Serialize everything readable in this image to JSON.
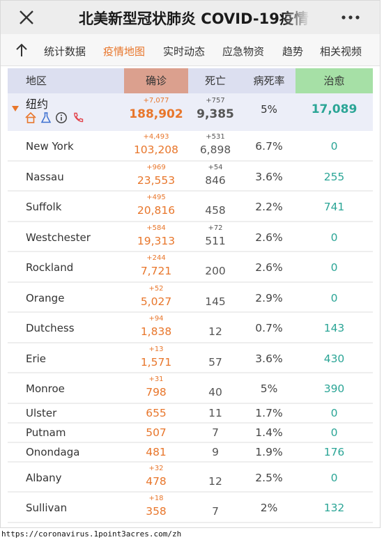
{
  "window": {
    "title": "北美新型冠状肺炎 COVID-19疫情",
    "close_icon": "close-icon",
    "more_icon": "more-icon"
  },
  "tabs": [
    {
      "label": "统计数据",
      "active": false
    },
    {
      "label": "疫情地图",
      "active": true
    },
    {
      "label": "实时动态",
      "active": false
    },
    {
      "label": "应急物资",
      "active": false
    },
    {
      "label": "趋势",
      "active": false
    },
    {
      "label": "相关视频",
      "active": false
    }
  ],
  "colors": {
    "accent": "#e8762b",
    "recovered": "#2ba596",
    "confirmed_header": "#dba08e",
    "recovered_header": "#a6e0a6",
    "header_bg": "#dcdff0"
  },
  "table": {
    "headers": {
      "region": "地区",
      "confirmed": "确诊",
      "deaths": "死亡",
      "fatality_rate": "病死率",
      "recovered": "治愈"
    },
    "summary": {
      "name": "纽约",
      "icons": [
        "home-icon",
        "flask-icon",
        "info-icon",
        "phone-icon"
      ],
      "confirmed_delta": "+7,077",
      "confirmed": "188,902",
      "deaths_delta": "+757",
      "deaths": "9,385",
      "fatality_rate": "5%",
      "recovered": "17,089"
    },
    "rows": [
      {
        "name": "New York",
        "confirmed_delta": "+4,493",
        "confirmed": "103,208",
        "deaths_delta": "+531",
        "deaths": "6,898",
        "fatality_rate": "6.7%",
        "recovered": "0"
      },
      {
        "name": "Nassau",
        "confirmed_delta": "+969",
        "confirmed": "23,553",
        "deaths_delta": "+54",
        "deaths": "846",
        "fatality_rate": "3.6%",
        "recovered": "255"
      },
      {
        "name": "Suffolk",
        "confirmed_delta": "+495",
        "confirmed": "20,816",
        "deaths_delta": "",
        "deaths": "458",
        "fatality_rate": "2.2%",
        "recovered": "741"
      },
      {
        "name": "Westchester",
        "confirmed_delta": "+584",
        "confirmed": "19,313",
        "deaths_delta": "+72",
        "deaths": "511",
        "fatality_rate": "2.6%",
        "recovered": "0"
      },
      {
        "name": "Rockland",
        "confirmed_delta": "+244",
        "confirmed": "7,721",
        "deaths_delta": "",
        "deaths": "200",
        "fatality_rate": "2.6%",
        "recovered": "0"
      },
      {
        "name": "Orange",
        "confirmed_delta": "+52",
        "confirmed": "5,027",
        "deaths_delta": "",
        "deaths": "145",
        "fatality_rate": "2.9%",
        "recovered": "0"
      },
      {
        "name": "Dutchess",
        "confirmed_delta": "+94",
        "confirmed": "1,838",
        "deaths_delta": "",
        "deaths": "12",
        "fatality_rate": "0.7%",
        "recovered": "143"
      },
      {
        "name": "Erie",
        "confirmed_delta": "+13",
        "confirmed": "1,571",
        "deaths_delta": "",
        "deaths": "57",
        "fatality_rate": "3.6%",
        "recovered": "430"
      },
      {
        "name": "Monroe",
        "confirmed_delta": "+31",
        "confirmed": "798",
        "deaths_delta": "",
        "deaths": "40",
        "fatality_rate": "5%",
        "recovered": "390"
      },
      {
        "name": "Ulster",
        "confirmed_delta": "",
        "confirmed": "655",
        "deaths_delta": "",
        "deaths": "11",
        "fatality_rate": "1.7%",
        "recovered": "0"
      },
      {
        "name": "Putnam",
        "confirmed_delta": "",
        "confirmed": "507",
        "deaths_delta": "",
        "deaths": "7",
        "fatality_rate": "1.4%",
        "recovered": "0"
      },
      {
        "name": "Onondaga",
        "confirmed_delta": "",
        "confirmed": "481",
        "deaths_delta": "",
        "deaths": "9",
        "fatality_rate": "1.9%",
        "recovered": "176"
      },
      {
        "name": "Albany",
        "confirmed_delta": "+32",
        "confirmed": "478",
        "deaths_delta": "",
        "deaths": "12",
        "fatality_rate": "2.5%",
        "recovered": "0"
      },
      {
        "name": "Sullivan",
        "confirmed_delta": "+18",
        "confirmed": "358",
        "deaths_delta": "",
        "deaths": "7",
        "fatality_rate": "2%",
        "recovered": "132"
      }
    ]
  },
  "footer": {
    "url": "https://coronavirus.1point3acres.com/zh"
  }
}
